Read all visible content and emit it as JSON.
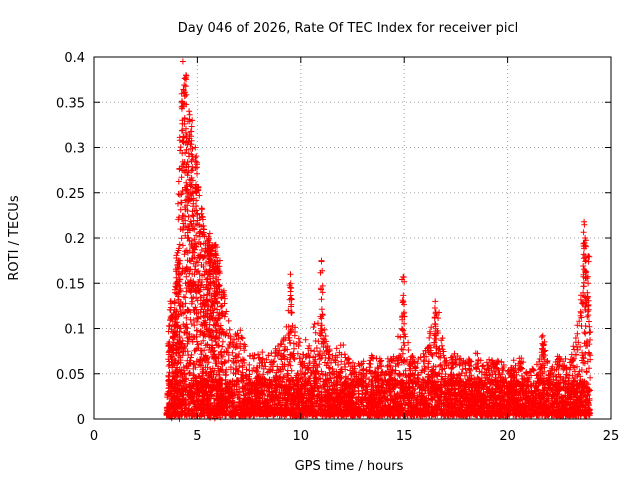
{
  "chart_data": {
    "type": "scatter",
    "title": "Day 046 of 2026, Rate Of TEC Index for receiver picl",
    "xlabel": "GPS time / hours",
    "ylabel": "ROTI / TECUs",
    "xlim": [
      0,
      25
    ],
    "ylim": [
      0,
      0.4
    ],
    "x_ticks": [
      0,
      5,
      10,
      15,
      20,
      25
    ],
    "y_ticks": [
      0,
      0.05,
      0.1,
      0.15,
      0.2,
      0.25,
      0.3,
      0.35,
      0.4
    ],
    "x_tick_labels": [
      "0",
      "5",
      "10",
      "15",
      "20",
      "25"
    ],
    "y_tick_labels": [
      "0",
      "0.05",
      "0.1",
      "0.15",
      "0.2",
      "0.25",
      "0.3",
      "0.35",
      "0.4"
    ],
    "grid": true,
    "marker": "+",
    "color": "#ff0000",
    "data_range_hours": [
      3.5,
      24.0
    ],
    "envelope": [
      [
        3.5,
        0.0
      ],
      [
        3.6,
        0.09
      ],
      [
        3.7,
        0.14
      ],
      [
        3.8,
        0.11
      ],
      [
        3.9,
        0.14
      ],
      [
        4.0,
        0.19
      ],
      [
        4.1,
        0.28
      ],
      [
        4.2,
        0.36
      ],
      [
        4.3,
        0.395
      ],
      [
        4.4,
        0.39
      ],
      [
        4.5,
        0.34
      ],
      [
        4.6,
        0.32
      ],
      [
        4.7,
        0.34
      ],
      [
        4.8,
        0.28
      ],
      [
        4.9,
        0.3
      ],
      [
        5.0,
        0.28
      ],
      [
        5.1,
        0.25
      ],
      [
        5.2,
        0.24
      ],
      [
        5.3,
        0.21
      ],
      [
        5.5,
        0.2
      ],
      [
        5.7,
        0.2
      ],
      [
        5.9,
        0.19
      ],
      [
        6.1,
        0.17
      ],
      [
        6.4,
        0.12
      ],
      [
        6.7,
        0.09
      ],
      [
        7.0,
        0.1
      ],
      [
        7.3,
        0.08
      ],
      [
        7.6,
        0.07
      ],
      [
        8.0,
        0.07
      ],
      [
        8.5,
        0.07
      ],
      [
        9.0,
        0.08
      ],
      [
        9.3,
        0.1
      ],
      [
        9.5,
        0.16
      ],
      [
        9.7,
        0.1
      ],
      [
        10.0,
        0.08
      ],
      [
        10.5,
        0.09
      ],
      [
        10.9,
        0.12
      ],
      [
        11.0,
        0.175
      ],
      [
        11.2,
        0.09
      ],
      [
        11.5,
        0.07
      ],
      [
        12.0,
        0.08
      ],
      [
        12.5,
        0.06
      ],
      [
        13.0,
        0.06
      ],
      [
        13.5,
        0.07
      ],
      [
        14.0,
        0.06
      ],
      [
        14.5,
        0.07
      ],
      [
        14.9,
        0.11
      ],
      [
        15.0,
        0.16
      ],
      [
        15.2,
        0.08
      ],
      [
        15.5,
        0.06
      ],
      [
        16.0,
        0.07
      ],
      [
        16.3,
        0.1
      ],
      [
        16.6,
        0.13
      ],
      [
        17.0,
        0.06
      ],
      [
        17.5,
        0.07
      ],
      [
        18.0,
        0.06
      ],
      [
        18.5,
        0.07
      ],
      [
        19.0,
        0.06
      ],
      [
        19.5,
        0.07
      ],
      [
        20.0,
        0.05
      ],
      [
        20.5,
        0.07
      ],
      [
        21.0,
        0.05
      ],
      [
        21.5,
        0.06
      ],
      [
        21.8,
        0.09
      ],
      [
        22.0,
        0.05
      ],
      [
        22.5,
        0.07
      ],
      [
        23.0,
        0.06
      ],
      [
        23.3,
        0.09
      ],
      [
        23.5,
        0.13
      ],
      [
        23.6,
        0.16
      ],
      [
        23.7,
        0.22
      ],
      [
        23.8,
        0.16
      ],
      [
        23.9,
        0.14
      ],
      [
        24.0,
        0.1
      ]
    ],
    "spikes": [
      {
        "x": 4.3,
        "y": 0.395
      },
      {
        "x": 4.45,
        "y": 0.38
      },
      {
        "x": 4.6,
        "y": 0.34
      },
      {
        "x": 4.75,
        "y": 0.33
      },
      {
        "x": 4.9,
        "y": 0.3
      },
      {
        "x": 5.6,
        "y": 0.205
      },
      {
        "x": 5.95,
        "y": 0.19
      },
      {
        "x": 9.5,
        "y": 0.16
      },
      {
        "x": 11.0,
        "y": 0.175
      },
      {
        "x": 14.95,
        "y": 0.157
      },
      {
        "x": 16.5,
        "y": 0.13
      },
      {
        "x": 21.7,
        "y": 0.092
      },
      {
        "x": 23.7,
        "y": 0.218
      },
      {
        "x": 23.75,
        "y": 0.2
      },
      {
        "x": 23.9,
        "y": 0.18
      }
    ]
  }
}
